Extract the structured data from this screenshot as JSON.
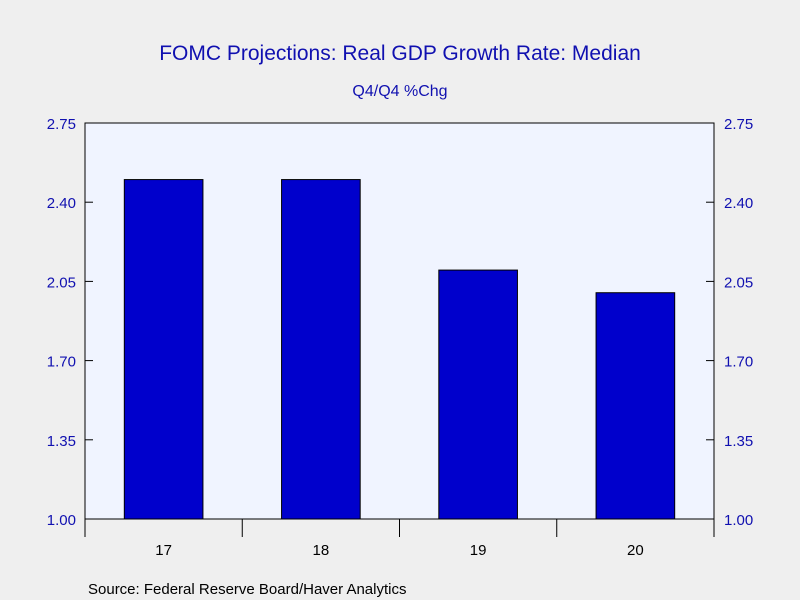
{
  "chart_data": {
    "type": "bar",
    "title": "FOMC Projections: Real GDP Growth Rate: Median",
    "subtitle": "Q4/Q4 %Chg",
    "categories": [
      "17",
      "18",
      "19",
      "20"
    ],
    "values": [
      2.5,
      2.5,
      2.1,
      2.0
    ],
    "ylim": [
      1.0,
      2.75
    ],
    "yticks": [
      "1.00",
      "1.35",
      "1.70",
      "2.05",
      "2.40",
      "2.75"
    ],
    "ytick_values": [
      1.0,
      1.35,
      1.7,
      2.05,
      2.4,
      2.75
    ],
    "xlabel": "",
    "ylabel": "",
    "grid": false,
    "legend": "none",
    "dual_y_axis": true,
    "source": "Source:  Federal Reserve Board/Haver Analytics"
  },
  "colors": {
    "bar": "#0000cc",
    "plot_bg": "#f0f4ff",
    "page_bg": "#efefef",
    "text_blue": "#1010b0"
  }
}
